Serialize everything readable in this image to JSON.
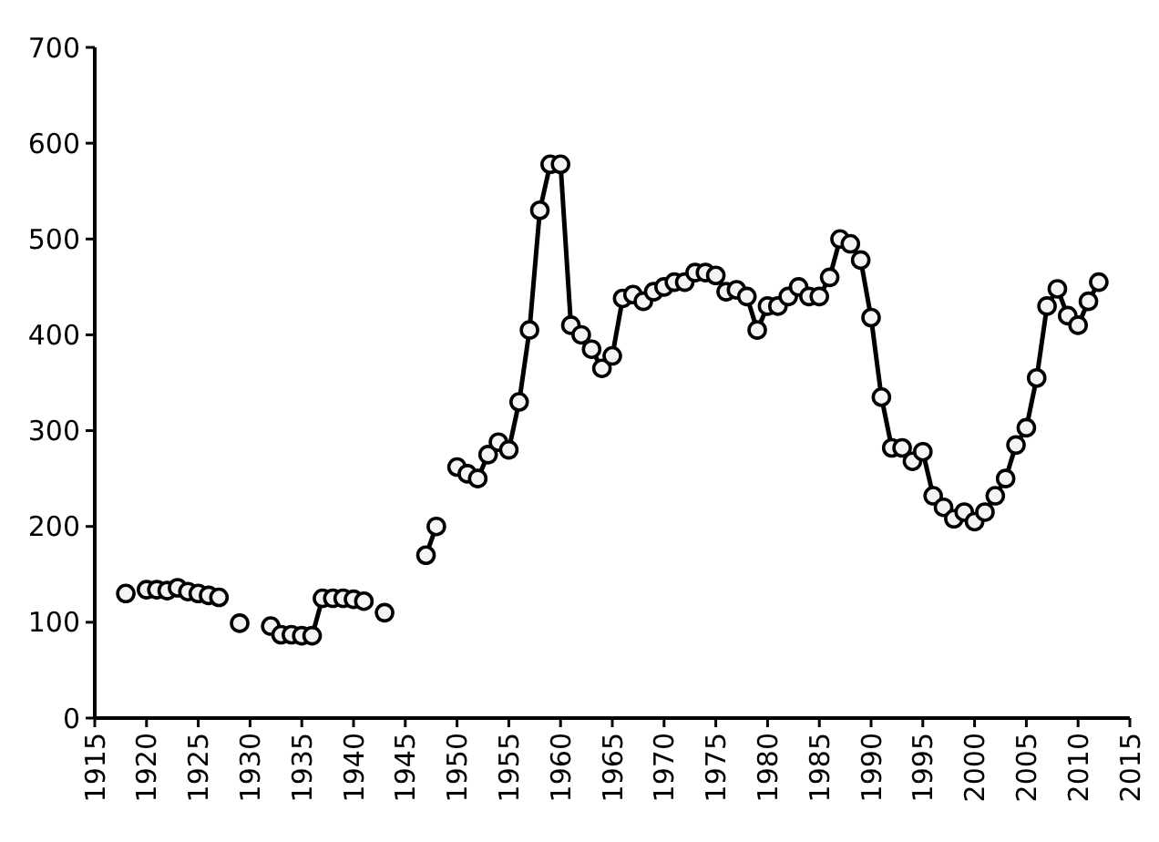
{
  "chart_data": {
    "type": "line",
    "marker": "circle",
    "line_style": "solid",
    "x": [
      1918,
      1919,
      1920,
      1921,
      1922,
      1923,
      1924,
      1925,
      1926,
      1927,
      1928,
      1929,
      1930,
      1931,
      1932,
      1933,
      1934,
      1935,
      1936,
      1937,
      1938,
      1939,
      1940,
      1941,
      1942,
      1943,
      1944,
      1945,
      1946,
      1947,
      1948,
      1949,
      1950,
      1951,
      1952,
      1953,
      1954,
      1955,
      1956,
      1957,
      1958,
      1959,
      1960,
      1961,
      1962,
      1963,
      1964,
      1965,
      1966,
      1967,
      1968,
      1969,
      1970,
      1971,
      1972,
      1973,
      1974,
      1975,
      1976,
      1977,
      1978,
      1979,
      1980,
      1981,
      1982,
      1983,
      1984,
      1985,
      1986,
      1987,
      1988,
      1989,
      1990,
      1991,
      1992,
      1993,
      1994,
      1995,
      1996,
      1997,
      1998,
      1999,
      2000,
      2001,
      2002,
      2003,
      2004,
      2005,
      2006,
      2007,
      2008,
      2009,
      2010,
      2011,
      2012
    ],
    "series": [
      {
        "color": "#000000",
        "values": [
          130,
          null,
          134,
          134,
          133,
          136,
          132,
          130,
          128,
          126,
          null,
          99,
          null,
          null,
          96,
          87,
          87,
          86,
          86,
          125,
          125,
          125,
          124,
          122,
          null,
          110,
          null,
          null,
          null,
          170,
          200,
          null,
          262,
          255,
          250,
          275,
          288,
          280,
          330,
          405,
          530,
          578,
          578,
          410,
          400,
          385,
          365,
          378,
          438,
          442,
          435,
          445,
          450,
          455,
          455,
          465,
          465,
          462,
          445,
          447,
          440,
          405,
          430,
          430,
          440,
          450,
          440,
          440,
          460,
          500,
          495,
          478,
          418,
          335,
          282,
          282,
          268,
          278,
          232,
          220,
          208,
          215,
          205,
          215,
          232,
          250,
          285,
          303,
          355,
          430,
          448,
          420,
          410,
          435,
          455
        ]
      }
    ],
    "xlim": [
      1915,
      2015
    ],
    "xticks": [
      1915,
      1920,
      1925,
      1930,
      1935,
      1940,
      1945,
      1950,
      1955,
      1960,
      1965,
      1970,
      1975,
      1980,
      1985,
      1990,
      1995,
      2000,
      2005,
      2010,
      2015
    ],
    "ylim": [
      0,
      700
    ],
    "yticks": [
      0,
      100,
      200,
      300,
      400,
      500,
      600,
      700
    ]
  }
}
